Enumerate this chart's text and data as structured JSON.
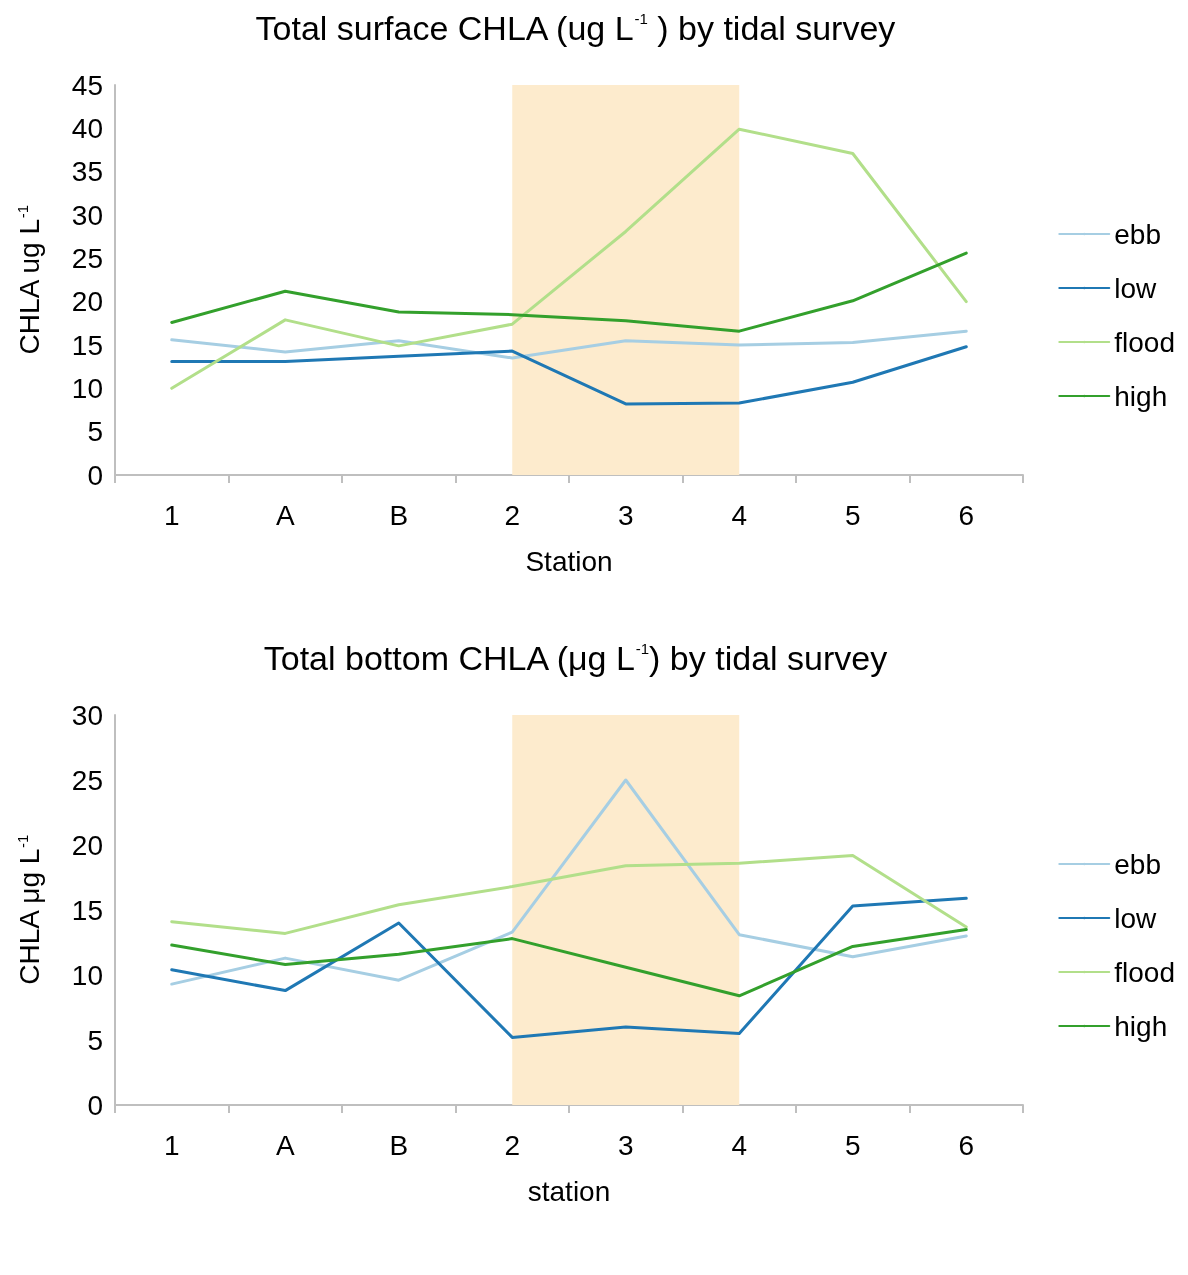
{
  "chart_data": [
    {
      "type": "line",
      "title": "Total surface CHLA (ug L$^{-1}$ ) by tidal survey",
      "xlabel": "Station",
      "ylabel": "CHLA ug L$^{-1}$",
      "categories": [
        "1",
        "A",
        "B",
        "2",
        "3",
        "4",
        "5",
        "6"
      ],
      "series": [
        {
          "name": "ebb",
          "color": "#a6cee3",
          "values": [
            15.6,
            14.2,
            15.5,
            13.5,
            15.5,
            15.0,
            15.3,
            16.6
          ]
        },
        {
          "name": "low",
          "color": "#1f78b4",
          "values": [
            13.1,
            13.1,
            13.7,
            14.3,
            8.2,
            8.3,
            10.7,
            14.8
          ]
        },
        {
          "name": "flood",
          "color": "#b2df8a",
          "values": [
            10.0,
            17.9,
            14.9,
            17.4,
            28.1,
            39.9,
            37.1,
            20.0
          ]
        },
        {
          "name": "high",
          "color": "#33a02c",
          "values": [
            17.6,
            21.2,
            18.8,
            18.5,
            17.8,
            16.6,
            20.1,
            25.6
          ]
        }
      ],
      "ylim": [
        0,
        45
      ],
      "yticks": [
        0,
        5,
        10,
        15,
        20,
        25,
        30,
        35,
        40,
        45
      ],
      "grid": false,
      "legend": "right",
      "marker": "none",
      "line_style": "solid",
      "bands": [
        {
          "axis": "x",
          "from": "2",
          "to": "4",
          "color": "#fdebcd"
        }
      ]
    },
    {
      "type": "line",
      "title": "Total bottom CHLA (μg L$^{-1}$) by tidal survey",
      "xlabel": "station",
      "ylabel": "CHLA μg L$^{-1}$",
      "categories": [
        "1",
        "A",
        "B",
        "2",
        "3",
        "4",
        "5",
        "6"
      ],
      "series": [
        {
          "name": "ebb",
          "color": "#a6cee3",
          "values": [
            9.3,
            11.3,
            9.6,
            13.3,
            25.0,
            13.1,
            11.4,
            13.0
          ]
        },
        {
          "name": "low",
          "color": "#1f78b4",
          "values": [
            10.4,
            8.8,
            14.0,
            5.2,
            6.0,
            5.5,
            15.3,
            15.9
          ]
        },
        {
          "name": "flood",
          "color": "#b2df8a",
          "values": [
            14.1,
            13.2,
            15.4,
            16.8,
            18.4,
            18.6,
            19.2,
            13.7
          ]
        },
        {
          "name": "high",
          "color": "#33a02c",
          "values": [
            12.3,
            10.8,
            11.6,
            12.8,
            10.6,
            8.4,
            12.2,
            13.5
          ]
        }
      ],
      "ylim": [
        0,
        30
      ],
      "yticks": [
        0,
        5,
        10,
        15,
        20,
        25,
        30
      ],
      "grid": false,
      "legend": "right",
      "marker": "none",
      "line_style": "solid",
      "bands": [
        {
          "axis": "x",
          "from": "2",
          "to": "4",
          "color": "#fdebcd"
        }
      ]
    }
  ]
}
